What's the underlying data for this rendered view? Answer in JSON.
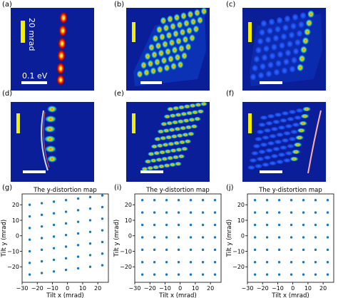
{
  "figure": {
    "panels": [
      "(a)",
      "(b)",
      "(c)",
      "(d)",
      "(e)",
      "(f)",
      "(g)",
      "(i)",
      "(j)"
    ],
    "annotations": {
      "mrad_scale": "20 mrad",
      "ev_scale": "0.1 eV"
    }
  },
  "chart_data": [
    {
      "type": "scatter",
      "panel": "(g)",
      "title": "The y-distortion map",
      "xlabel": "Tilt x (mrad)",
      "ylabel": "Tilt y (mrad)",
      "xlim": [
        -30,
        27
      ],
      "ylim": [
        -30,
        27
      ],
      "xticks": [
        -30,
        -20,
        -10,
        0,
        10,
        20
      ],
      "yticks": [
        -20,
        -10,
        0,
        10,
        20
      ],
      "color": "#1f77b4",
      "x": [
        -25,
        -17,
        -9,
        -1,
        7,
        15,
        23,
        -25,
        -17,
        -9,
        -1,
        7,
        15,
        23,
        -25,
        -17,
        -9,
        -1,
        7,
        15,
        23,
        -25,
        -17,
        -9,
        -1,
        7,
        15,
        23,
        -25,
        -17,
        -9,
        -1,
        7,
        15,
        23,
        -25,
        -17,
        -9,
        -1,
        7,
        15,
        23,
        -25,
        -17,
        -9,
        -1,
        7,
        15,
        23
      ],
      "y": [
        20,
        21,
        22,
        23,
        24,
        25,
        26,
        12.5,
        13.5,
        14.5,
        15.5,
        16.5,
        17.5,
        18.5,
        5,
        6,
        7,
        8,
        9,
        10,
        11,
        -2.5,
        -1.5,
        -0.5,
        0.5,
        1.5,
        2.5,
        3.5,
        -10,
        -9,
        -8,
        -7,
        -6,
        -5,
        -4,
        -17.5,
        -16.5,
        -15.5,
        -14.5,
        -13.5,
        -12.5,
        -11.5,
        -25,
        -24,
        -23,
        -22,
        -21,
        -20,
        -19
      ]
    },
    {
      "type": "scatter",
      "panel": "(i)",
      "title": "The y-distortion map",
      "xlabel": "Tilt x (mrad)",
      "ylabel": "Tilt y (mrad)",
      "xlim": [
        -30,
        27
      ],
      "ylim": [
        -30,
        27
      ],
      "xticks": [
        -30,
        -20,
        -10,
        0,
        10,
        20
      ],
      "yticks": [
        -20,
        -10,
        0,
        10,
        20
      ],
      "color": "#1f77b4",
      "x": [
        -25,
        -17,
        -9,
        -1,
        7,
        15,
        23,
        -25,
        -17,
        -9,
        -1,
        7,
        15,
        23,
        -25,
        -17,
        -9,
        -1,
        7,
        15,
        23,
        -25,
        -17,
        -9,
        -1,
        7,
        15,
        23,
        -25,
        -17,
        -9,
        -1,
        7,
        15,
        23,
        -25,
        -17,
        -9,
        -1,
        7,
        15,
        23,
        -25,
        -17,
        -9,
        -1,
        7,
        15,
        23
      ],
      "y": [
        23,
        23,
        23,
        23,
        23,
        23,
        23,
        15,
        15,
        15,
        15,
        15,
        15,
        15,
        7,
        7,
        7,
        7,
        7,
        7,
        7,
        -1,
        -1,
        -1,
        -1,
        -1,
        -1,
        -1,
        -9,
        -9,
        -9,
        -9,
        -9,
        -9,
        -9,
        -17,
        -17,
        -17,
        -17,
        -17,
        -17,
        -17,
        -25,
        -25,
        -25,
        -25,
        -25,
        -25,
        -25
      ]
    },
    {
      "type": "scatter",
      "panel": "(j)",
      "title": "The y-distortion map",
      "xlabel": "Tilt x (mrad)",
      "ylabel": "Tilt y (mrad)",
      "xlim": [
        -30,
        27
      ],
      "ylim": [
        -30,
        27
      ],
      "xticks": [
        -30,
        -20,
        -10,
        0,
        10,
        20
      ],
      "yticks": [
        -20,
        -10,
        0,
        10,
        20
      ],
      "color": "#1f77b4",
      "x": [
        -25,
        -17,
        -9,
        -1,
        7,
        15,
        23,
        -25,
        -17,
        -9,
        -1,
        7,
        15,
        23,
        -25,
        -17,
        -9,
        -1,
        7,
        15,
        23,
        -25,
        -17,
        -9,
        -1,
        7,
        15,
        23,
        -25,
        -17,
        -9,
        -1,
        7,
        15,
        23,
        -25,
        -17,
        -9,
        -1,
        7,
        15,
        23,
        -25,
        -17,
        -9,
        -1,
        7,
        15,
        23
      ],
      "y": [
        23,
        23,
        23,
        23,
        23,
        23,
        23,
        15,
        15,
        15,
        15,
        15,
        15,
        15,
        7,
        7,
        7,
        7,
        7,
        7,
        7,
        -1,
        -1,
        -1,
        -1,
        -1,
        -1,
        -1,
        -9,
        -9,
        -9,
        -9,
        -9,
        -9,
        -9,
        -17,
        -17,
        -17,
        -17,
        -17,
        -17,
        -17,
        -25,
        -25,
        -25,
        -25,
        -25,
        -25,
        -25
      ]
    }
  ]
}
